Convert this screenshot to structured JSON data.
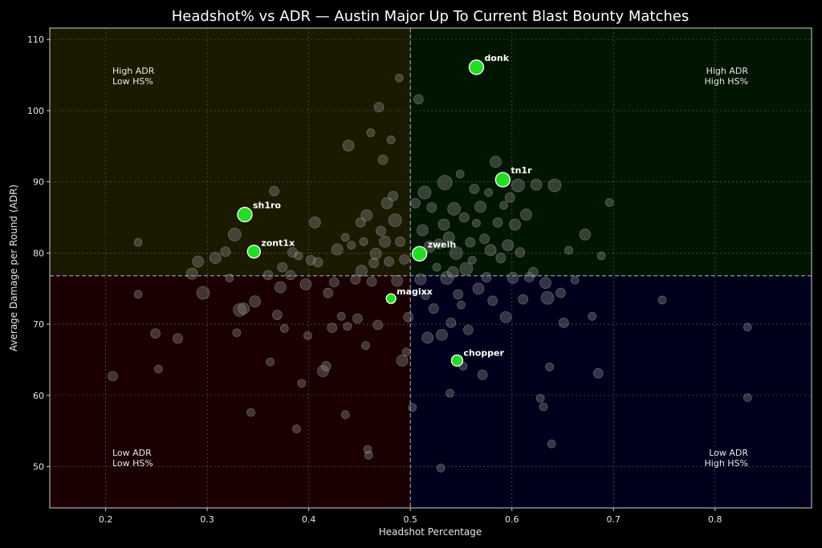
{
  "chart_data": {
    "type": "scatter",
    "title": "Headshot% vs ADR — Austin Major Up To Current Blast Bounty Matches",
    "xlabel": "Headshot Percentage",
    "ylabel": "Average Damage per Round (ADR)",
    "xlim": [
      0.145,
      0.895
    ],
    "ylim": [
      44.2,
      111.6
    ],
    "xticks": [
      0.2,
      0.3,
      0.4,
      0.5,
      0.6,
      0.7,
      0.8
    ],
    "xtick_labels": [
      "0.2",
      "0.3",
      "0.4",
      "0.5",
      "0.6",
      "0.7",
      "0.8"
    ],
    "yticks": [
      50,
      60,
      70,
      80,
      90,
      100,
      110
    ],
    "ytick_labels": [
      "50",
      "60",
      "70",
      "80",
      "90",
      "100",
      "110"
    ],
    "grid": true,
    "reference_lines": {
      "x": 0.5,
      "y": 76.8
    },
    "colors": {
      "background": "#000000",
      "quadrant_top_left": "#1a1a00",
      "quadrant_top_right": "#001600",
      "quadrant_bottom_left": "#1a0000",
      "quadrant_bottom_right": "#00001c",
      "highlight": "#22dd22",
      "other_points": "#8a8a8a",
      "reference_line": "#b0b0d8"
    },
    "quadrant_labels": [
      {
        "position": "top-left",
        "lines": [
          "High ADR",
          "Low HS%"
        ]
      },
      {
        "position": "top-right",
        "lines": [
          "High ADR",
          "High HS%"
        ]
      },
      {
        "position": "bottom-left",
        "lines": [
          "Low ADR",
          "Low HS%"
        ]
      },
      {
        "position": "bottom-right",
        "lines": [
          "Low ADR",
          "High HS%"
        ]
      }
    ],
    "highlighted_players": [
      {
        "name": "donk",
        "x": 0.565,
        "y": 106.1,
        "size": 9
      },
      {
        "name": "tn1r",
        "x": 0.591,
        "y": 90.3,
        "size": 9
      },
      {
        "name": "sh1ro",
        "x": 0.337,
        "y": 85.4,
        "size": 9
      },
      {
        "name": "zont1x",
        "x": 0.346,
        "y": 80.2,
        "size": 8
      },
      {
        "name": "zweih",
        "x": 0.509,
        "y": 79.9,
        "size": 9
      },
      {
        "name": "magixx",
        "x": 0.481,
        "y": 73.6,
        "size": 6
      },
      {
        "name": "chopper",
        "x": 0.546,
        "y": 64.9,
        "size": 7
      }
    ],
    "other_players": [
      [
        0.207,
        62.7,
        6
      ],
      [
        0.232,
        74.2,
        5
      ],
      [
        0.232,
        81.5,
        5
      ],
      [
        0.249,
        68.7,
        6
      ],
      [
        0.252,
        63.7,
        5
      ],
      [
        0.271,
        68.0,
        6
      ],
      [
        0.285,
        77.1,
        7
      ],
      [
        0.291,
        78.8,
        7
      ],
      [
        0.296,
        74.4,
        8
      ],
      [
        0.308,
        79.3,
        7
      ],
      [
        0.318,
        80.2,
        6
      ],
      [
        0.322,
        76.5,
        5
      ],
      [
        0.327,
        82.6,
        8
      ],
      [
        0.329,
        68.8,
        5
      ],
      [
        0.332,
        72.0,
        8
      ],
      [
        0.336,
        72.2,
        7
      ],
      [
        0.343,
        57.6,
        5
      ],
      [
        0.347,
        73.2,
        7
      ],
      [
        0.36,
        76.9,
        6
      ],
      [
        0.362,
        64.7,
        5
      ],
      [
        0.366,
        88.7,
        6
      ],
      [
        0.369,
        71.3,
        6
      ],
      [
        0.372,
        75.2,
        7
      ],
      [
        0.374,
        78.0,
        6
      ],
      [
        0.376,
        69.4,
        5
      ],
      [
        0.382,
        76.9,
        6
      ],
      [
        0.384,
        80.1,
        6
      ],
      [
        0.388,
        55.3,
        5
      ],
      [
        0.39,
        79.6,
        5
      ],
      [
        0.393,
        61.7,
        5
      ],
      [
        0.397,
        75.6,
        7
      ],
      [
        0.399,
        68.4,
        5
      ],
      [
        0.402,
        79.0,
        6
      ],
      [
        0.406,
        84.3,
        7
      ],
      [
        0.409,
        78.7,
        6
      ],
      [
        0.414,
        63.4,
        7
      ],
      [
        0.417,
        64.1,
        6
      ],
      [
        0.419,
        74.4,
        6
      ],
      [
        0.423,
        69.5,
        6
      ],
      [
        0.425,
        75.9,
        6
      ],
      [
        0.428,
        80.5,
        7
      ],
      [
        0.432,
        71.1,
        5
      ],
      [
        0.436,
        82.2,
        5
      ],
      [
        0.436,
        57.3,
        5
      ],
      [
        0.438,
        69.7,
        5
      ],
      [
        0.439,
        95.1,
        7
      ],
      [
        0.442,
        81.1,
        5
      ],
      [
        0.446,
        76.3,
        6
      ],
      [
        0.448,
        70.8,
        6
      ],
      [
        0.451,
        84.3,
        6
      ],
      [
        0.452,
        77.5,
        7
      ],
      [
        0.454,
        81.6,
        5
      ],
      [
        0.456,
        67.0,
        5
      ],
      [
        0.457,
        85.3,
        7
      ],
      [
        0.458,
        52.4,
        5
      ],
      [
        0.459,
        51.6,
        5
      ],
      [
        0.461,
        96.9,
        5
      ],
      [
        0.462,
        76.0,
        6
      ],
      [
        0.464,
        78.6,
        6
      ],
      [
        0.466,
        79.9,
        7
      ],
      [
        0.468,
        69.9,
        6
      ],
      [
        0.469,
        100.5,
        6
      ],
      [
        0.471,
        83.1,
        6
      ],
      [
        0.473,
        93.1,
        6
      ],
      [
        0.475,
        81.6,
        7
      ],
      [
        0.477,
        87.0,
        7
      ],
      [
        0.479,
        78.8,
        6
      ],
      [
        0.481,
        95.9,
        5
      ],
      [
        0.483,
        88.0,
        6
      ],
      [
        0.485,
        84.6,
        8
      ],
      [
        0.487,
        76.1,
        7
      ],
      [
        0.489,
        104.6,
        5
      ],
      [
        0.49,
        81.6,
        6
      ],
      [
        0.492,
        64.9,
        7
      ],
      [
        0.494,
        79.1,
        6
      ],
      [
        0.496,
        66.1,
        5
      ],
      [
        0.498,
        71.0,
        6
      ],
      [
        0.502,
        58.3,
        5
      ],
      [
        0.505,
        87.0,
        6
      ],
      [
        0.508,
        101.6,
        6
      ],
      [
        0.51,
        76.3,
        7
      ],
      [
        0.512,
        83.2,
        7
      ],
      [
        0.514,
        88.5,
        8
      ],
      [
        0.515,
        74.0,
        5
      ],
      [
        0.517,
        68.1,
        7
      ],
      [
        0.519,
        80.9,
        7
      ],
      [
        0.521,
        86.4,
        6
      ],
      [
        0.523,
        72.2,
        6
      ],
      [
        0.526,
        78.0,
        5
      ],
      [
        0.528,
        81.3,
        6
      ],
      [
        0.53,
        49.8,
        5
      ],
      [
        0.531,
        68.5,
        7
      ],
      [
        0.533,
        84.0,
        7
      ],
      [
        0.534,
        89.9,
        9
      ],
      [
        0.536,
        76.5,
        8
      ],
      [
        0.538,
        82.2,
        7
      ],
      [
        0.539,
        60.3,
        5
      ],
      [
        0.54,
        70.2,
        6
      ],
      [
        0.542,
        77.3,
        7
      ],
      [
        0.543,
        86.2,
        8
      ],
      [
        0.545,
        80.0,
        8
      ],
      [
        0.547,
        74.2,
        6
      ],
      [
        0.549,
        91.1,
        5
      ],
      [
        0.55,
        72.7,
        5
      ],
      [
        0.552,
        64.1,
        5
      ],
      [
        0.553,
        85.0,
        6
      ],
      [
        0.555,
        77.8,
        8
      ],
      [
        0.557,
        69.2,
        6
      ],
      [
        0.559,
        81.5,
        6
      ],
      [
        0.561,
        79.0,
        5
      ],
      [
        0.563,
        89.0,
        6
      ],
      [
        0.565,
        84.2,
        5
      ],
      [
        0.567,
        75.0,
        7
      ],
      [
        0.569,
        86.5,
        7
      ],
      [
        0.571,
        62.9,
        6
      ],
      [
        0.573,
        82.0,
        6
      ],
      [
        0.575,
        76.6,
        6
      ],
      [
        0.577,
        88.5,
        5
      ],
      [
        0.579,
        80.4,
        7
      ],
      [
        0.581,
        73.3,
        6
      ],
      [
        0.584,
        92.8,
        7
      ],
      [
        0.586,
        84.3,
        6
      ],
      [
        0.589,
        79.3,
        6
      ],
      [
        0.592,
        86.7,
        5
      ],
      [
        0.594,
        71.0,
        7
      ],
      [
        0.596,
        81.1,
        7
      ],
      [
        0.598,
        87.8,
        6
      ],
      [
        0.601,
        76.5,
        7
      ],
      [
        0.603,
        84.0,
        7
      ],
      [
        0.606,
        89.5,
        8
      ],
      [
        0.608,
        80.1,
        6
      ],
      [
        0.611,
        73.5,
        6
      ],
      [
        0.614,
        85.4,
        7
      ],
      [
        0.617,
        76.6,
        6
      ],
      [
        0.621,
        77.3,
        6
      ],
      [
        0.624,
        89.6,
        7
      ],
      [
        0.628,
        59.6,
        5
      ],
      [
        0.631,
        58.4,
        5
      ],
      [
        0.633,
        75.8,
        7
      ],
      [
        0.635,
        73.7,
        8
      ],
      [
        0.637,
        64.0,
        5
      ],
      [
        0.639,
        53.2,
        5
      ],
      [
        0.642,
        89.5,
        8
      ],
      [
        0.648,
        74.4,
        6
      ],
      [
        0.651,
        70.2,
        6
      ],
      [
        0.656,
        80.4,
        5
      ],
      [
        0.662,
        76.2,
        5
      ],
      [
        0.672,
        82.6,
        7
      ],
      [
        0.679,
        71.1,
        5
      ],
      [
        0.685,
        63.1,
        6
      ],
      [
        0.688,
        79.6,
        5
      ],
      [
        0.696,
        87.1,
        5
      ],
      [
        0.748,
        73.4,
        5
      ],
      [
        0.832,
        69.6,
        5
      ],
      [
        0.832,
        59.7,
        5
      ]
    ]
  }
}
